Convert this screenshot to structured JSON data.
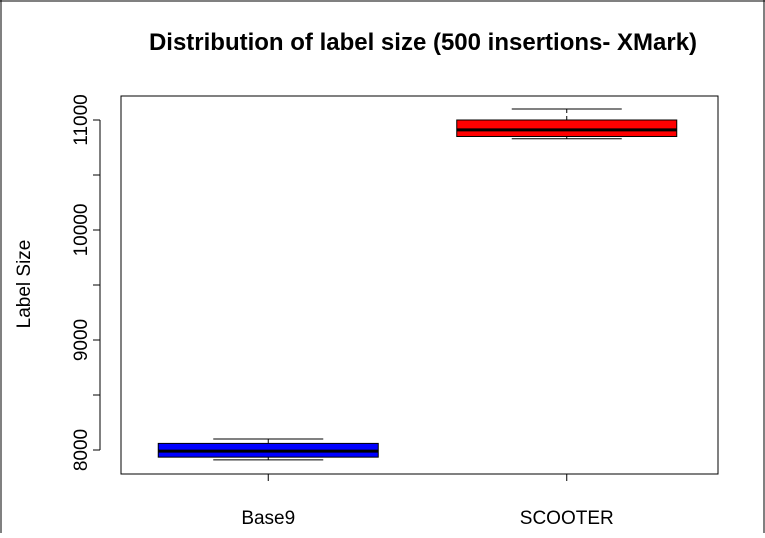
{
  "chart_data": {
    "type": "boxplot",
    "title": "Distribution of label size (500 insertions- XMark)",
    "xlabel": "",
    "ylabel": "Label Size",
    "yticks": [
      8000,
      9000,
      10000,
      11000
    ],
    "categories": [
      "Base9",
      "SCOOTER"
    ],
    "boxes": [
      {
        "category": "Base9",
        "color": "#0000ff",
        "whisker_low": 7910,
        "q1": 7935,
        "median": 7990,
        "q3": 8060,
        "whisker_high": 8100
      },
      {
        "category": "SCOOTER",
        "color": "#ff0000",
        "whisker_low": 10830,
        "q1": 10850,
        "median": 10910,
        "q3": 11000,
        "whisker_high": 11100
      }
    ],
    "grid": false,
    "legend": "none"
  }
}
